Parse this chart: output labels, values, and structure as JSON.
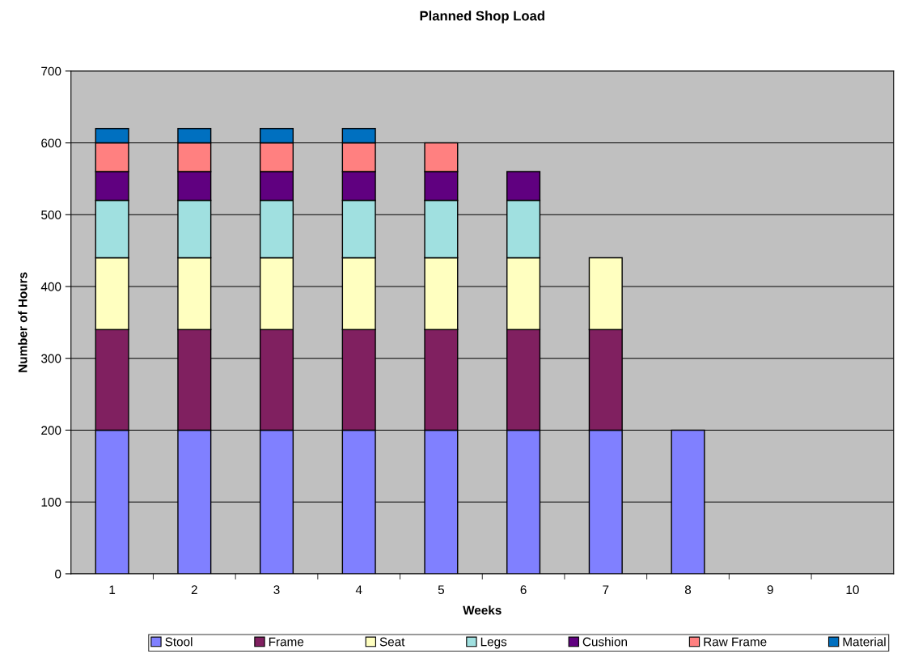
{
  "chart_data": {
    "type": "bar",
    "title": "Planned Shop Load",
    "xlabel": "Weeks",
    "ylabel": "Number of Hours",
    "categories": [
      "1",
      "2",
      "3",
      "4",
      "5",
      "6",
      "7",
      "8",
      "9",
      "10"
    ],
    "stacked": true,
    "ylim": [
      0,
      700
    ],
    "yticks": [
      0,
      100,
      200,
      300,
      400,
      500,
      600,
      700
    ],
    "grid": "y",
    "legend": "bottom",
    "series": [
      {
        "name": "Stool",
        "color": "#8080ff",
        "values": [
          200,
          200,
          200,
          200,
          200,
          200,
          200,
          200,
          null,
          null
        ]
      },
      {
        "name": "Frame",
        "color": "#802060",
        "values": [
          140,
          140,
          140,
          140,
          140,
          140,
          140,
          null,
          null,
          null
        ]
      },
      {
        "name": "Seat",
        "color": "#ffffc0",
        "values": [
          100,
          100,
          100,
          100,
          100,
          100,
          100,
          null,
          null,
          null
        ]
      },
      {
        "name": "Legs",
        "color": "#a0e0e0",
        "values": [
          80,
          80,
          80,
          80,
          80,
          80,
          null,
          null,
          null,
          null
        ]
      },
      {
        "name": "Cushion",
        "color": "#600080",
        "values": [
          40,
          40,
          40,
          40,
          40,
          40,
          null,
          null,
          null,
          null
        ]
      },
      {
        "name": "Raw Frame",
        "color": "#ff8080",
        "values": [
          40,
          40,
          40,
          40,
          40,
          null,
          null,
          null,
          null,
          null
        ]
      },
      {
        "name": "Material",
        "color": "#0070c0",
        "values": [
          20,
          20,
          20,
          20,
          null,
          null,
          null,
          null,
          null,
          null
        ]
      }
    ]
  }
}
